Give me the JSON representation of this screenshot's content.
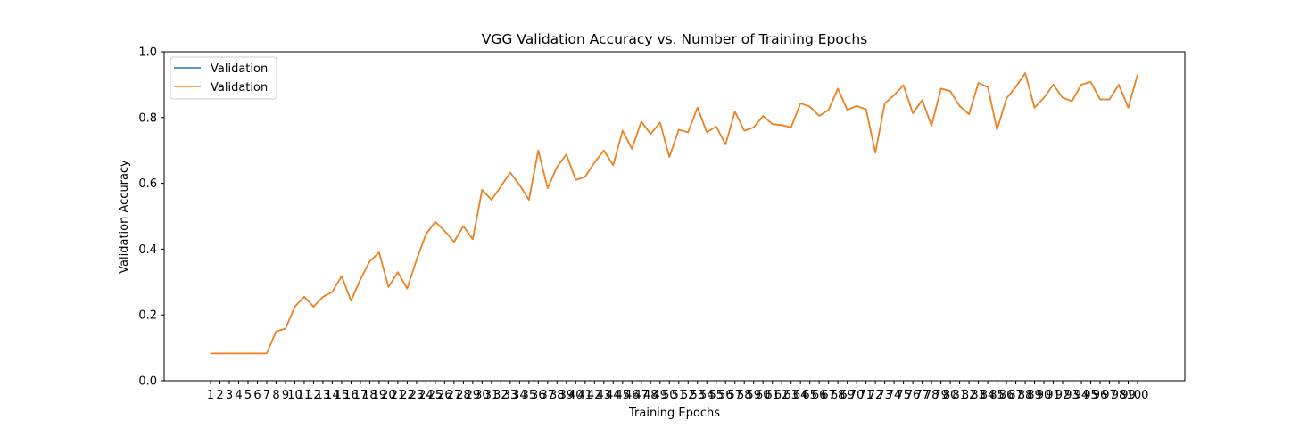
{
  "chart_data": {
    "type": "line",
    "title": "VGG Validation Accuracy vs. Number of Training Epochs",
    "xlabel": "Training Epochs",
    "ylabel": "Validation Accuracy",
    "ylim": [
      0.0,
      1.0
    ],
    "yticks": [
      "0.0",
      "0.2",
      "0.4",
      "0.6",
      "0.8",
      "1.0"
    ],
    "grid": false,
    "legend_position": "top-left",
    "x": [
      1,
      2,
      3,
      4,
      5,
      6,
      7,
      8,
      9,
      10,
      11,
      12,
      13,
      14,
      15,
      16,
      17,
      18,
      19,
      20,
      21,
      22,
      23,
      24,
      25,
      26,
      27,
      28,
      29,
      30,
      31,
      32,
      33,
      34,
      35,
      36,
      37,
      38,
      39,
      40,
      41,
      42,
      43,
      44,
      45,
      46,
      47,
      48,
      49,
      50,
      51,
      52,
      53,
      54,
      55,
      56,
      57,
      58,
      59,
      60,
      61,
      62,
      63,
      64,
      65,
      66,
      67,
      68,
      69,
      70,
      71,
      72,
      73,
      74,
      75,
      76,
      77,
      78,
      79,
      80,
      81,
      82,
      83,
      84,
      85,
      86,
      87,
      88,
      89,
      90,
      91,
      92,
      93,
      94,
      95,
      96,
      97,
      98,
      99,
      100
    ],
    "series": [
      {
        "name": "Validation",
        "color": "#1f77b4",
        "values": [
          0.083,
          0.083,
          0.083,
          0.083,
          0.083,
          0.083,
          0.083,
          0.15,
          0.158,
          0.225,
          0.255,
          0.225,
          0.255,
          0.27,
          0.318,
          0.243,
          0.308,
          0.363,
          0.39,
          0.285,
          0.33,
          0.28,
          0.368,
          0.445,
          0.483,
          0.455,
          0.422,
          0.47,
          0.43,
          0.58,
          0.55,
          0.59,
          0.633,
          0.595,
          0.55,
          0.7,
          0.585,
          0.65,
          0.688,
          0.61,
          0.62,
          0.663,
          0.7,
          0.655,
          0.76,
          0.705,
          0.788,
          0.75,
          0.785,
          0.68,
          0.763,
          0.755,
          0.83,
          0.755,
          0.773,
          0.718,
          0.818,
          0.76,
          0.77,
          0.805,
          0.78,
          0.777,
          0.77,
          0.843,
          0.833,
          0.805,
          0.823,
          0.888,
          0.823,
          0.835,
          0.825,
          0.693,
          0.843,
          0.868,
          0.898,
          0.813,
          0.853,
          0.775,
          0.888,
          0.88,
          0.835,
          0.81,
          0.905,
          0.893,
          0.763,
          0.858,
          0.893,
          0.935,
          0.83,
          0.86,
          0.9,
          0.86,
          0.85,
          0.9,
          0.908,
          0.855,
          0.855,
          0.9,
          0.83,
          0.93
        ]
      },
      {
        "name": "Validation",
        "color": "#ff7f0e",
        "values": [
          0.083,
          0.083,
          0.083,
          0.083,
          0.083,
          0.083,
          0.083,
          0.15,
          0.158,
          0.225,
          0.255,
          0.225,
          0.255,
          0.27,
          0.318,
          0.243,
          0.308,
          0.363,
          0.39,
          0.285,
          0.33,
          0.28,
          0.368,
          0.445,
          0.483,
          0.455,
          0.422,
          0.47,
          0.43,
          0.58,
          0.55,
          0.59,
          0.633,
          0.595,
          0.55,
          0.7,
          0.585,
          0.65,
          0.688,
          0.61,
          0.62,
          0.663,
          0.7,
          0.655,
          0.76,
          0.705,
          0.788,
          0.75,
          0.785,
          0.68,
          0.763,
          0.755,
          0.83,
          0.755,
          0.773,
          0.718,
          0.818,
          0.76,
          0.77,
          0.805,
          0.78,
          0.777,
          0.77,
          0.843,
          0.833,
          0.805,
          0.823,
          0.888,
          0.823,
          0.835,
          0.825,
          0.693,
          0.843,
          0.868,
          0.898,
          0.813,
          0.853,
          0.775,
          0.888,
          0.88,
          0.835,
          0.81,
          0.905,
          0.893,
          0.763,
          0.858,
          0.893,
          0.935,
          0.83,
          0.86,
          0.9,
          0.86,
          0.85,
          0.9,
          0.908,
          0.855,
          0.855,
          0.9,
          0.83,
          0.93
        ]
      }
    ]
  }
}
